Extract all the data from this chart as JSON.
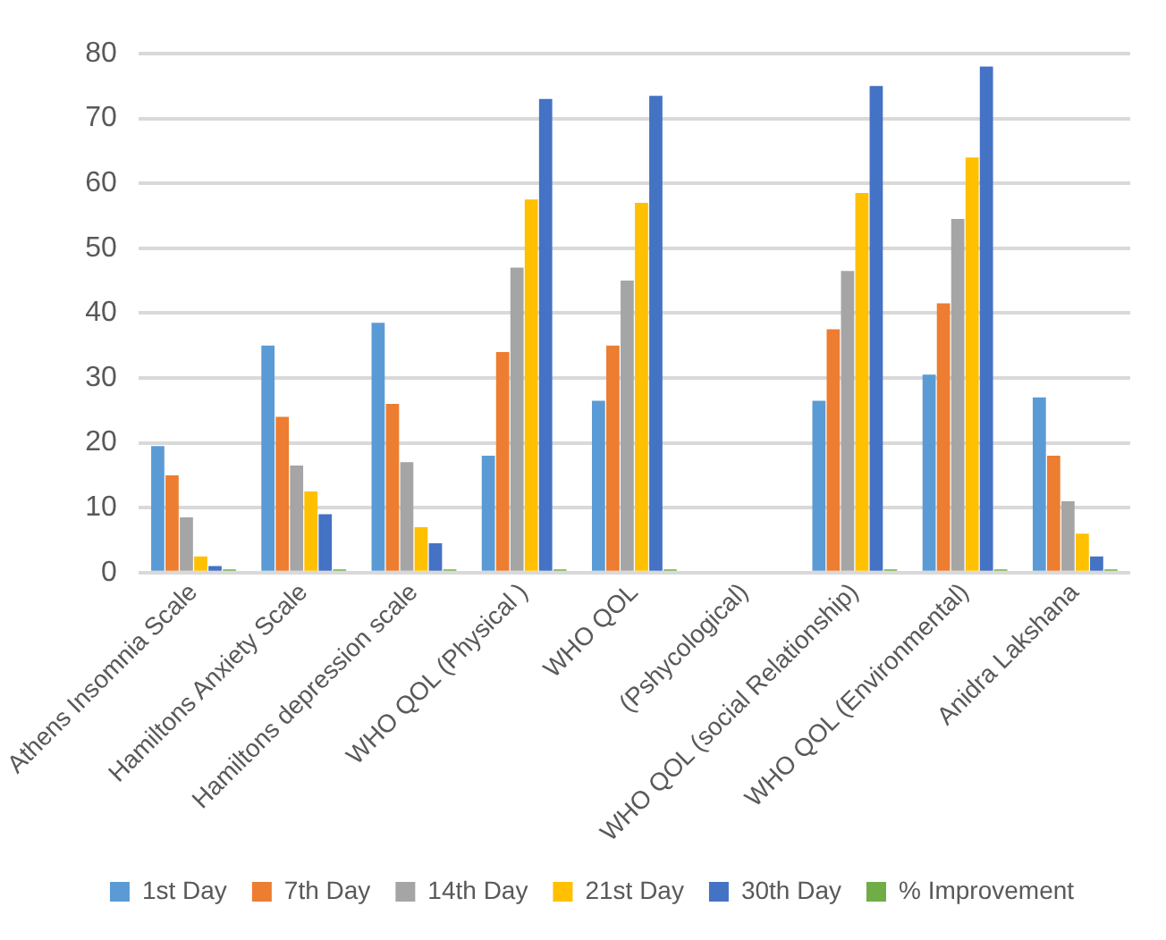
{
  "chart_data": {
    "type": "bar",
    "categories": [
      "Athens Insomnia Scale",
      "Hamiltons Anxiety Scale",
      "Hamiltons depression scale",
      "WHO QOL (Physical )",
      "WHO QOL",
      "(Pshycological)",
      "WHO QOL (social Relationship)",
      "WHO QOL (Environmental)",
      "Anidra Lakshana"
    ],
    "series": [
      {
        "name": "1st Day",
        "color": "#5b9bd5",
        "values": [
          19.5,
          35,
          38.5,
          18,
          26.5,
          null,
          26.5,
          30.5,
          27
        ]
      },
      {
        "name": "7th Day",
        "color": "#ed7d31",
        "values": [
          15,
          24,
          26,
          34,
          35,
          null,
          37.5,
          41.5,
          18
        ]
      },
      {
        "name": "14th Day",
        "color": "#a5a5a5",
        "values": [
          8.5,
          16.5,
          17,
          47,
          45,
          null,
          46.5,
          54.5,
          11
        ]
      },
      {
        "name": "21st Day",
        "color": "#ffc000",
        "values": [
          2.5,
          12.5,
          7,
          57.5,
          57,
          null,
          58.5,
          64,
          6
        ]
      },
      {
        "name": "30th Day",
        "color": "#4472c4",
        "values": [
          1,
          9,
          4.5,
          73,
          73.5,
          null,
          75,
          78,
          2.5
        ]
      },
      {
        "name": "% Improvement",
        "color": "#70ad47",
        "values": [
          0.5,
          0.5,
          0.5,
          0.5,
          0.5,
          null,
          0.5,
          0.5,
          0.5
        ]
      }
    ],
    "ylim": [
      0,
      80
    ],
    "yticks": [
      0,
      10,
      20,
      30,
      40,
      50,
      60,
      70,
      80
    ],
    "grid": "y",
    "legend": "bottom"
  }
}
